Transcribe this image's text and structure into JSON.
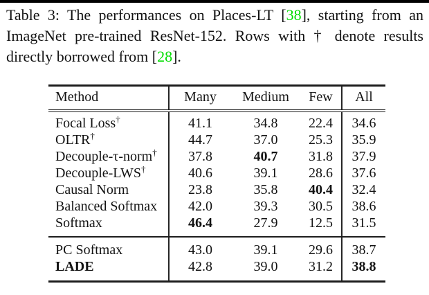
{
  "page": {
    "background": "#ffffff",
    "top_bar_color": "#000000",
    "text_color": "#131313",
    "citation_color": "#00dd00"
  },
  "caption": {
    "p1": "Table 3: The performances on Places-LT [",
    "cite1": "38",
    "p2": "], starting from an ImageNet pre-trained ResNet-152. Rows with † denote results directly borrowed from [",
    "cite2": "28",
    "p3": "]."
  },
  "chart_data": {
    "type": "table",
    "title": "Table 3: The performances on Places-LT [38], starting from an ImageNet pre-trained ResNet-152. Rows with † denote results directly borrowed from [28].",
    "columns": [
      "Method",
      "Many",
      "Medium",
      "Few",
      "All"
    ],
    "dagger_symbol": "†",
    "rows": [
      {
        "method": "Focal Loss",
        "sup": "†",
        "many": "41.1",
        "medium": "34.8",
        "few": "22.4",
        "all": "34.6",
        "bold": []
      },
      {
        "method": "OLTR",
        "sup": "†",
        "many": "44.7",
        "medium": "37.0",
        "few": "25.3",
        "all": "35.9",
        "bold": []
      },
      {
        "method": "Decouple-τ-norm",
        "sup": "†",
        "many": "37.8",
        "medium": "40.7",
        "few": "31.8",
        "all": "37.9",
        "bold": [
          "medium"
        ]
      },
      {
        "method": "Decouple-LWS",
        "sup": "†",
        "many": "40.6",
        "medium": "39.1",
        "few": "28.6",
        "all": "37.6",
        "bold": []
      },
      {
        "method": "Causal Norm",
        "many": "23.8",
        "medium": "35.8",
        "few": "40.4",
        "all": "32.4",
        "bold": [
          "few"
        ]
      },
      {
        "method": "Balanced Softmax",
        "many": "42.0",
        "medium": "39.3",
        "few": "30.5",
        "all": "38.6",
        "bold": []
      },
      {
        "method": "Softmax",
        "many": "46.4",
        "medium": "27.9",
        "few": "12.5",
        "all": "31.5",
        "bold": [
          "many"
        ]
      },
      {
        "method": "PC Softmax",
        "many": "43.0",
        "medium": "39.1",
        "few": "29.6",
        "all": "38.7",
        "bold": []
      },
      {
        "method": "LADE",
        "many": "42.8",
        "medium": "39.0",
        "few": "31.2",
        "all": "38.8",
        "bold": [
          "method",
          "all"
        ]
      }
    ]
  }
}
